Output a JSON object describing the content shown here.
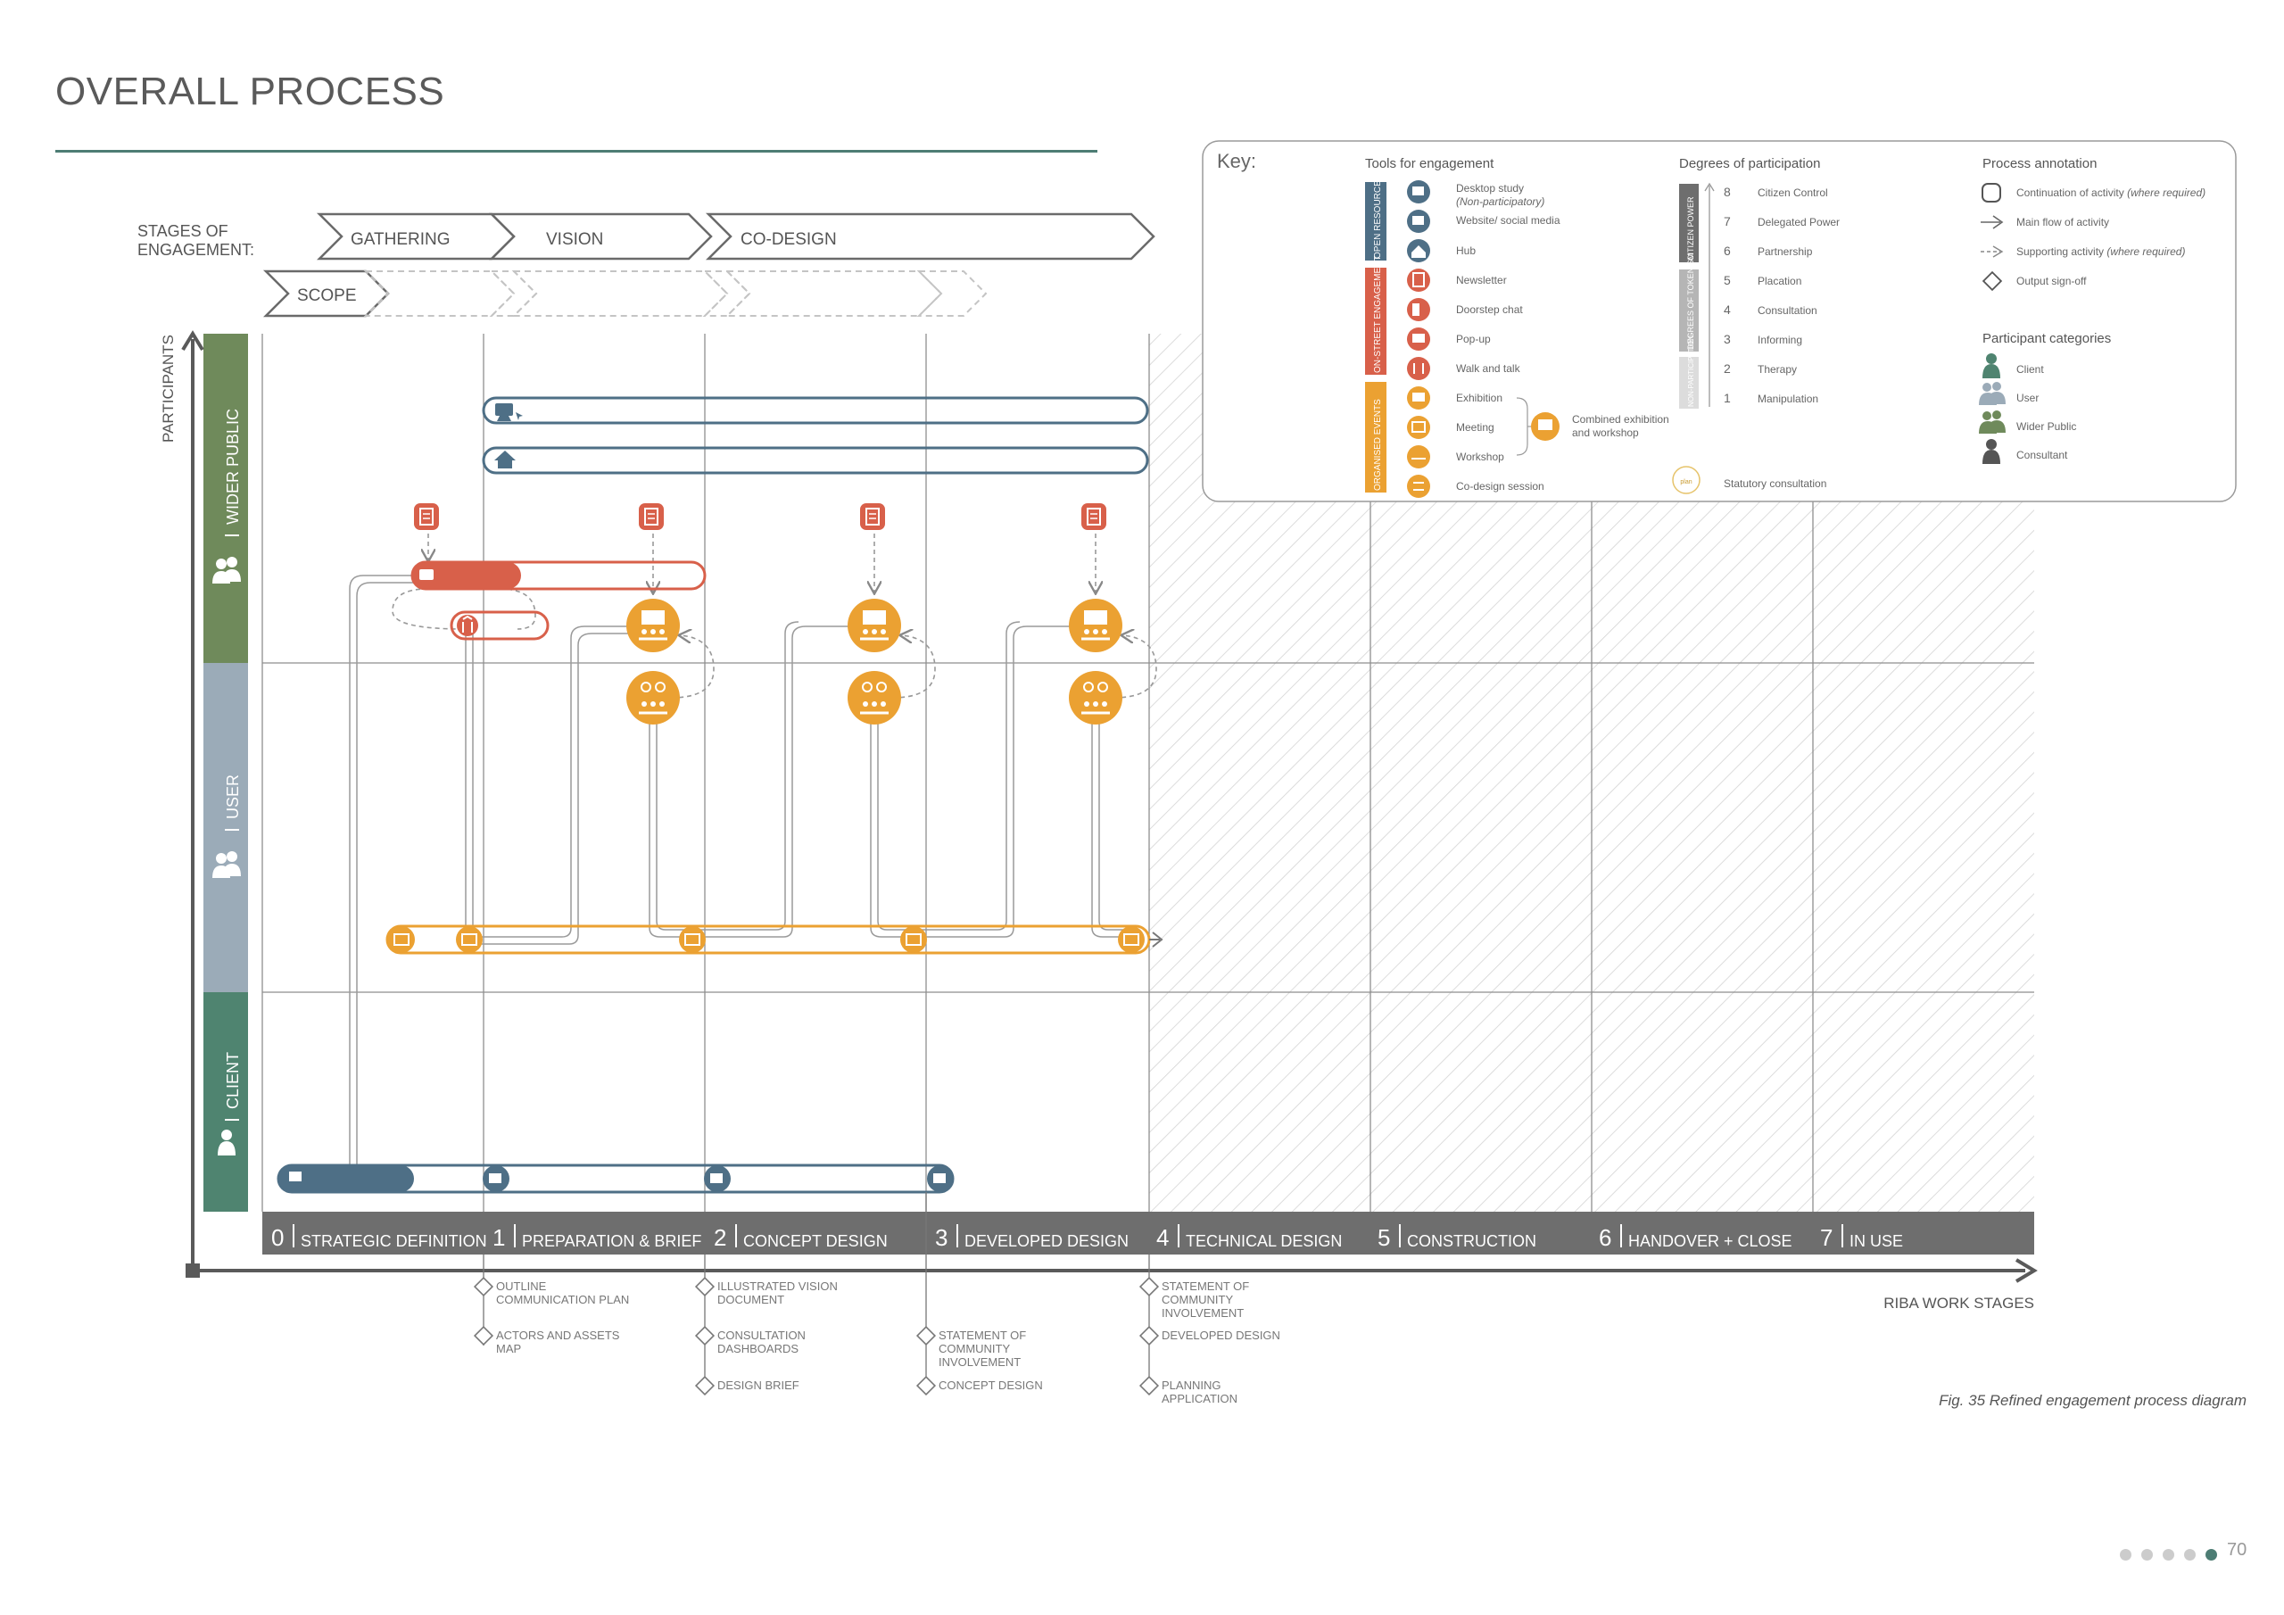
{
  "title": "OVERALL PROCESS",
  "stages_label_1": "STAGES OF",
  "stages_label_2": "ENGAGEMENT:",
  "stages": {
    "gathering": "GATHERING",
    "vision": "VISION",
    "codesign": "CO-DESIGN",
    "scope": "SCOPE"
  },
  "participants_axis": "PARTICIPANTS",
  "rows": {
    "wider_public": "WIDER PUBLIC",
    "user": "USER",
    "client": "CLIENT"
  },
  "work_stages": [
    {
      "num": "0",
      "label": "STRATEGIC DEFINITION"
    },
    {
      "num": "1",
      "label": "PREPARATION & BRIEF"
    },
    {
      "num": "2",
      "label": "CONCEPT DESIGN"
    },
    {
      "num": "3",
      "label": "DEVELOPED DESIGN"
    },
    {
      "num": "4",
      "label": "TECHNICAL DESIGN"
    },
    {
      "num": "5",
      "label": "CONSTRUCTION"
    },
    {
      "num": "6",
      "label": "HANDOVER + CLOSE"
    },
    {
      "num": "7",
      "label": "IN USE"
    }
  ],
  "work_stages_axis": "RIBA WORK STAGES",
  "outputs": {
    "s1a": [
      "OUTLINE",
      "COMMUNICATION PLAN"
    ],
    "s1b": [
      "ACTORS AND ASSETS",
      "MAP"
    ],
    "s2a": [
      "ILLUSTRATED VISION",
      "DOCUMENT"
    ],
    "s2b": [
      "CONSULTATION",
      "DASHBOARDS"
    ],
    "s2c": [
      "DESIGN BRIEF"
    ],
    "s3a": [
      "STATEMENT OF",
      "COMMUNITY",
      "INVOLVEMENT"
    ],
    "s3b": [
      "CONCEPT DESIGN"
    ],
    "s4a": [
      "STATEMENT OF",
      "COMMUNITY",
      "INVOLVEMENT"
    ],
    "s4b": [
      "DEVELOPED DESIGN"
    ],
    "s4c": [
      "PLANNING",
      "APPLICATION"
    ]
  },
  "key": {
    "title": "Key:",
    "tools_heading": "Tools for engagement",
    "tool_groups": [
      "OPEN RESOURCE",
      "ON-STREET ENGAGEMENT",
      "ORGANISED EVENTS"
    ],
    "tools": {
      "desktop": "Desktop study",
      "desktop_note": "(Non-participatory)",
      "website": "Website/ social media",
      "hub": "Hub",
      "newsletter": "Newsletter",
      "doorstep": "Doorstep chat",
      "popup": "Pop-up",
      "walk": "Walk and talk",
      "exhibition": "Exhibition",
      "meeting": "Meeting",
      "workshop": "Workshop",
      "codesign": "Co-design session",
      "combined_1": "Combined exhibition",
      "combined_2": "and workshop",
      "statutory": "Statutory consultation",
      "statutory_badge": "plan"
    },
    "degrees_heading": "Degrees of participation",
    "degree_groups": [
      "CITIZEN POWER",
      "DEGREES OF TOKENISM",
      "NON-PARTICIPATION"
    ],
    "degrees": [
      {
        "n": "8",
        "label": "Citizen Control"
      },
      {
        "n": "7",
        "label": "Delegated Power"
      },
      {
        "n": "6",
        "label": "Partnership"
      },
      {
        "n": "5",
        "label": "Placation"
      },
      {
        "n": "4",
        "label": "Consultation"
      },
      {
        "n": "3",
        "label": "Informing"
      },
      {
        "n": "2",
        "label": "Therapy"
      },
      {
        "n": "1",
        "label": "Manipulation"
      }
    ],
    "process_heading": "Process annotation",
    "process": {
      "continuation": "Continuation of activity",
      "continuation_note": "(where required)",
      "main_flow": "Main flow of activity",
      "supporting": "Supporting activity",
      "supporting_note": "(where required)",
      "signoff": "Output sign-off"
    },
    "categories_heading": "Participant categories",
    "categories": {
      "client": "Client",
      "user": "User",
      "wider": "Wider Public",
      "consultant": "Consultant"
    }
  },
  "caption": "Fig. 35 Refined engagement process diagram",
  "page_number": "70",
  "colors": {
    "blue": "#4e6f86",
    "red": "#d8604a",
    "orange": "#eba132",
    "green_row": "#6f8a5b",
    "grey_row": "#9babb8",
    "teal_row": "#4f8470",
    "stage_bar": "#6e6e6e",
    "rule": "#4d7d74"
  }
}
